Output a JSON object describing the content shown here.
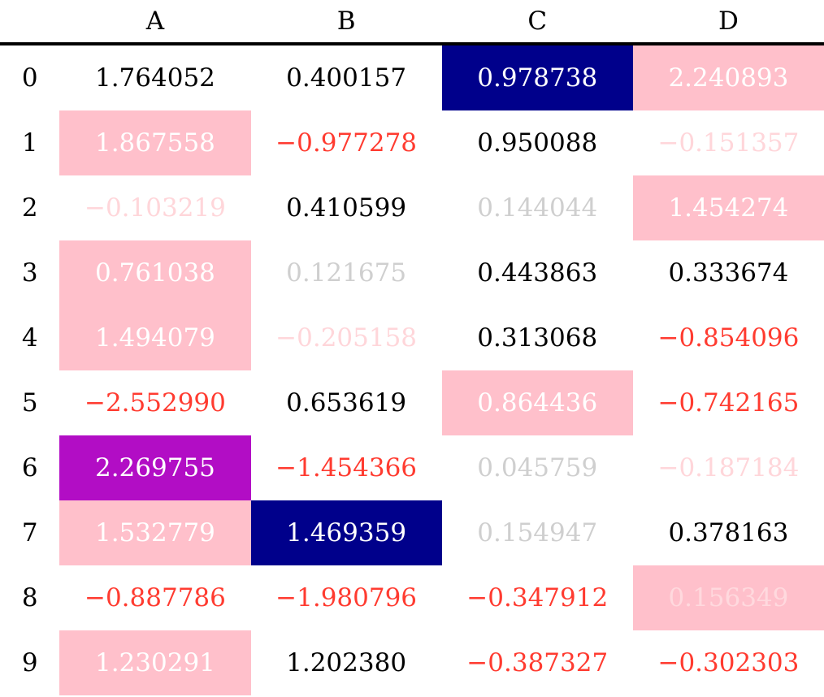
{
  "columns": [
    "",
    "A",
    "B",
    "C",
    "D"
  ],
  "rows": [
    {
      "index": "0",
      "cells": [
        {
          "v": "1.764052",
          "s": "plain"
        },
        {
          "v": "0.400157",
          "s": "plain"
        },
        {
          "v": "0.978738",
          "s": "navy"
        },
        {
          "v": "2.240893",
          "s": "pink"
        }
      ]
    },
    {
      "index": "1",
      "cells": [
        {
          "v": "1.867558",
          "s": "pink"
        },
        {
          "v": "−0.977278",
          "s": "neg"
        },
        {
          "v": "0.950088",
          "s": "plain"
        },
        {
          "v": "−0.151357",
          "s": "pale"
        }
      ]
    },
    {
      "index": "2",
      "cells": [
        {
          "v": "−0.103219",
          "s": "pale"
        },
        {
          "v": "0.410599",
          "s": "plain"
        },
        {
          "v": "0.144044",
          "s": "grey"
        },
        {
          "v": "1.454274",
          "s": "pink"
        }
      ]
    },
    {
      "index": "3",
      "cells": [
        {
          "v": "0.761038",
          "s": "pink"
        },
        {
          "v": "0.121675",
          "s": "grey"
        },
        {
          "v": "0.443863",
          "s": "plain"
        },
        {
          "v": "0.333674",
          "s": "plain"
        }
      ]
    },
    {
      "index": "4",
      "cells": [
        {
          "v": "1.494079",
          "s": "pink"
        },
        {
          "v": "−0.205158",
          "s": "pale"
        },
        {
          "v": "0.313068",
          "s": "plain"
        },
        {
          "v": "−0.854096",
          "s": "neg"
        }
      ]
    },
    {
      "index": "5",
      "cells": [
        {
          "v": "−2.552990",
          "s": "neg"
        },
        {
          "v": "0.653619",
          "s": "plain"
        },
        {
          "v": "0.864436",
          "s": "pink"
        },
        {
          "v": "−0.742165",
          "s": "neg"
        }
      ]
    },
    {
      "index": "6",
      "cells": [
        {
          "v": "2.269755",
          "s": "purple"
        },
        {
          "v": "−1.454366",
          "s": "neg"
        },
        {
          "v": "0.045759",
          "s": "grey"
        },
        {
          "v": "−0.187184",
          "s": "pale"
        }
      ]
    },
    {
      "index": "7",
      "cells": [
        {
          "v": "1.532779",
          "s": "pink"
        },
        {
          "v": "1.469359",
          "s": "navy"
        },
        {
          "v": "0.154947",
          "s": "grey"
        },
        {
          "v": "0.378163",
          "s": "plain"
        }
      ]
    },
    {
      "index": "8",
      "cells": [
        {
          "v": "−0.887786",
          "s": "neg"
        },
        {
          "v": "−1.980796",
          "s": "neg"
        },
        {
          "v": "−0.347912",
          "s": "neg"
        },
        {
          "v": "0.156349",
          "s": "pinkpale"
        }
      ]
    },
    {
      "index": "9",
      "cells": [
        {
          "v": "1.230291",
          "s": "pink"
        },
        {
          "v": "1.202380",
          "s": "plain"
        },
        {
          "v": "−0.387327",
          "s": "neg"
        },
        {
          "v": "−0.302303",
          "s": "neg"
        }
      ]
    }
  ],
  "colors": {
    "navy": "#00008b",
    "pink": "#ffc0cb",
    "purple": "#b20dc5",
    "negative_text": "#ff3b30",
    "pale_text": "#ffd6da",
    "grey_text": "#cfcfcf"
  }
}
